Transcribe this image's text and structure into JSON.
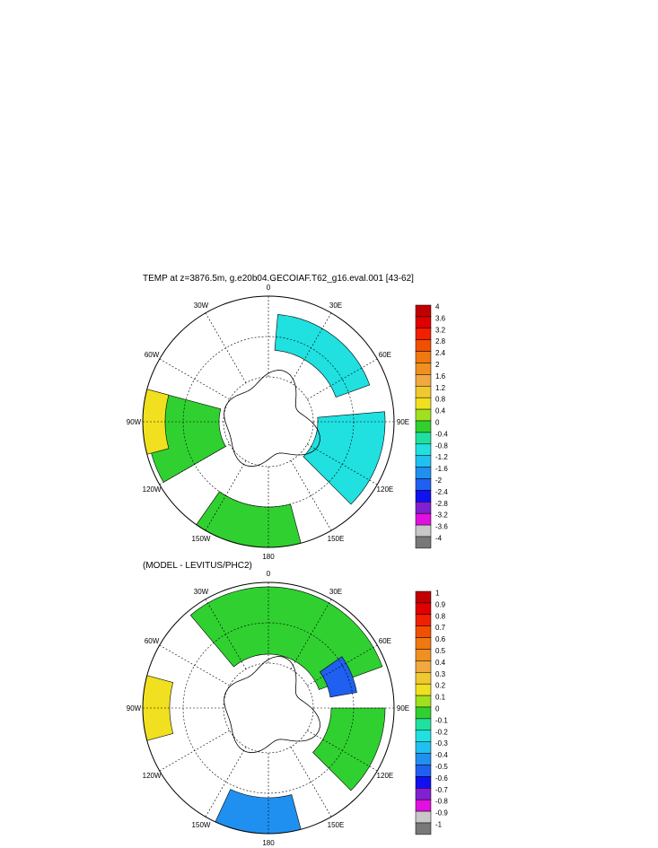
{
  "chart_data": [
    {
      "type": "polar-contour-map",
      "title": "TEMP at z=3876.5m, g.e20b04.GECOIAF.T62_g16.eval.001 [43-62]",
      "projection": "south-polar-stereographic",
      "longitude_labels": [
        "0",
        "30E",
        "60E",
        "90E",
        "120E",
        "150E",
        "180",
        "150W",
        "120W",
        "90W",
        "60W",
        "30W"
      ],
      "colorbar": {
        "labels": [
          "4",
          "3.6",
          "3.2",
          "2.8",
          "2.4",
          "2",
          "1.6",
          "1.2",
          "0.8",
          "0.4",
          "0",
          "-0.4",
          "-0.8",
          "-1.2",
          "-1.6",
          "-2",
          "-2.4",
          "-2.8",
          "-3.2",
          "-3.6",
          "-4"
        ],
        "colors": [
          "#c00000",
          "#e00000",
          "#f02000",
          "#f05000",
          "#f07810",
          "#f09020",
          "#f0a840",
          "#f0c830",
          "#f0e020",
          "#a0e020",
          "#30d030",
          "#20e0a0",
          "#20e0e0",
          "#20c0f0",
          "#2090f0",
          "#2060f0",
          "#1010f0",
          "#8020d0",
          "#e010e0",
          "#c8c8c8",
          "#787878"
        ]
      },
      "regions": [
        {
          "value_band": "-0.4 to 0",
          "color": "#20e0e0",
          "sector": "0 to 60E, Weddell/Indian basin"
        },
        {
          "value_band": "0 to 0.4",
          "color": "#30d030",
          "sector": "80W-110W Pacific sector"
        },
        {
          "value_band": "0.8 to 1.2",
          "color": "#f0e020",
          "sector": "around 90W outer edge"
        },
        {
          "value_band": "0 to 0.4",
          "color": "#30d030",
          "sector": "150W-180 Ross Sea"
        },
        {
          "value_band": "-0.4 to 0",
          "color": "#20e0e0",
          "sector": "90E-130E Australian-Antarctic basin"
        }
      ]
    },
    {
      "type": "polar-contour-map",
      "title": "(MODEL - LEVITUS/PHC2)",
      "projection": "south-polar-stereographic",
      "longitude_labels": [
        "0",
        "30E",
        "60E",
        "90E",
        "120E",
        "150E",
        "180",
        "150W",
        "120W",
        "90W",
        "60W",
        "30W"
      ],
      "colorbar": {
        "labels": [
          "1",
          "0.9",
          "0.8",
          "0.7",
          "0.6",
          "0.5",
          "0.4",
          "0.3",
          "0.2",
          "0.1",
          "0",
          "-0.1",
          "-0.2",
          "-0.3",
          "-0.4",
          "-0.5",
          "-0.6",
          "-0.7",
          "-0.8",
          "-0.9",
          "-1"
        ],
        "colors": [
          "#c00000",
          "#e00000",
          "#f02000",
          "#f05000",
          "#f07810",
          "#f09020",
          "#f0a840",
          "#f0c830",
          "#f0e020",
          "#a0e020",
          "#30d030",
          "#20e0a0",
          "#20e0e0",
          "#20c0f0",
          "#2090f0",
          "#2060f0",
          "#1010f0",
          "#8020d0",
          "#e010e0",
          "#c8c8c8",
          "#787878"
        ]
      },
      "regions": [
        {
          "value_band": "0 to 0.1",
          "color": "#30d030",
          "sector": "broad Atlantic/Indian sector"
        },
        {
          "value_band": "-0.6 to -0.3",
          "color": "#2060f0",
          "sector": "near 60E Kerguelen"
        },
        {
          "value_band": "0.3 to 0.4",
          "color": "#f0e020",
          "sector": "near 90W outer edge"
        },
        {
          "value_band": "-0.5 to -0.2",
          "color": "#2090f0",
          "sector": "Ross Sea 150W-180"
        },
        {
          "value_band": "0 to 0.1",
          "color": "#30d030",
          "sector": "90E-130E sector"
        }
      ]
    }
  ]
}
